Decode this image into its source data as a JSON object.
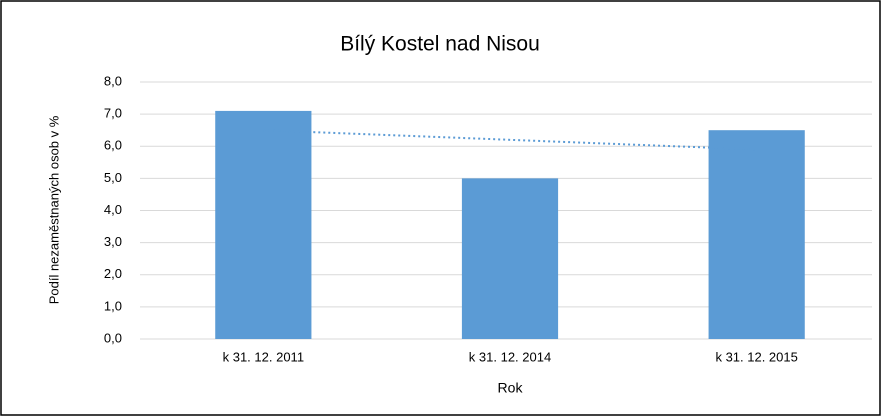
{
  "chart_data": {
    "type": "bar",
    "title": "Bílý Kostel nad Nisou",
    "categories": [
      "k 31. 12. 2011",
      "k 31. 12. 2014",
      "k 31. 12. 2015"
    ],
    "values": [
      7.1,
      5.0,
      6.5
    ],
    "color": "#5b9bd5",
    "x_label": "Rok",
    "y_label": "Podíl nezaměstnaných osob v %",
    "ylim": [
      0,
      8
    ],
    "yticks": [
      {
        "value": 0,
        "label": "0,0"
      },
      {
        "value": 1,
        "label": "1,0"
      },
      {
        "value": 2,
        "label": "2,0"
      },
      {
        "value": 3,
        "label": "3,0"
      },
      {
        "value": 4,
        "label": "4,0"
      },
      {
        "value": 5,
        "label": "5,0"
      },
      {
        "value": 6,
        "label": "6,0"
      },
      {
        "value": 7,
        "label": "7,0"
      },
      {
        "value": 8,
        "label": "8,0"
      }
    ],
    "grid": true,
    "trendline": "linear"
  }
}
